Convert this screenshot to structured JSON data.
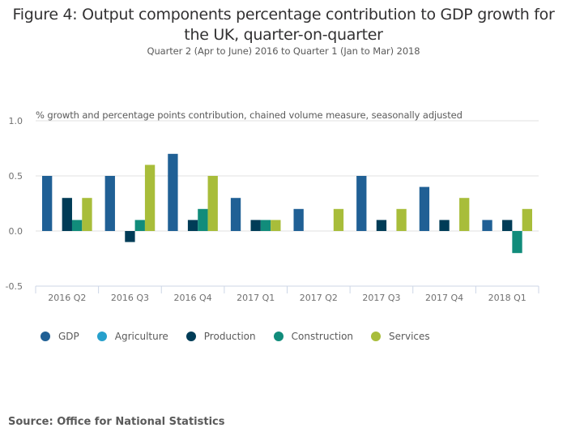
{
  "chart_data": {
    "type": "bar",
    "title": "Figure 4: Output components percentage contribution to GDP growth for the UK, quarter-on-quarter",
    "title_lines": [
      "Figure 4: Output components percentage contribution to GDP growth for",
      "the UK, quarter-on-quarter"
    ],
    "subtitle": "Quarter 2 (Apr to June) 2016 to Quarter 1 (Jan to Mar) 2018",
    "ylabel": "% growth and percentage points contribution, chained volume measure, seasonally adjusted",
    "xlabel": "",
    "ylim": [
      -0.5,
      1.0
    ],
    "yticks": [
      1.0,
      0.5,
      0.0,
      -0.5
    ],
    "ytick_labels": [
      "1.0",
      "0.5",
      "0.0",
      "-0.5"
    ],
    "grid": true,
    "legend_position": "bottom-left",
    "categories": [
      "2016 Q2",
      "2016 Q3",
      "2016 Q4",
      "2017 Q1",
      "2017 Q2",
      "2017 Q3",
      "2017 Q4",
      "2018 Q1"
    ],
    "series": [
      {
        "name": "GDP",
        "color": "#206095",
        "values": [
          0.5,
          0.5,
          0.7,
          0.3,
          0.2,
          0.5,
          0.4,
          0.1
        ]
      },
      {
        "name": "Agriculture",
        "color": "#27a0cc",
        "values": [
          0.0,
          0.0,
          0.0,
          0.0,
          0.0,
          0.0,
          0.0,
          0.0
        ]
      },
      {
        "name": "Production",
        "color": "#003c57",
        "values": [
          0.3,
          -0.1,
          0.1,
          0.1,
          0.0,
          0.1,
          0.1,
          0.1
        ]
      },
      {
        "name": "Construction",
        "color": "#118c7b",
        "values": [
          0.1,
          0.1,
          0.2,
          0.1,
          0.0,
          0.0,
          0.0,
          -0.2
        ]
      },
      {
        "name": "Services",
        "color": "#a8bd3a",
        "values": [
          0.3,
          0.6,
          0.5,
          0.1,
          0.2,
          0.2,
          0.3,
          0.2
        ]
      }
    ]
  },
  "source": "Source: Office for National Statistics"
}
